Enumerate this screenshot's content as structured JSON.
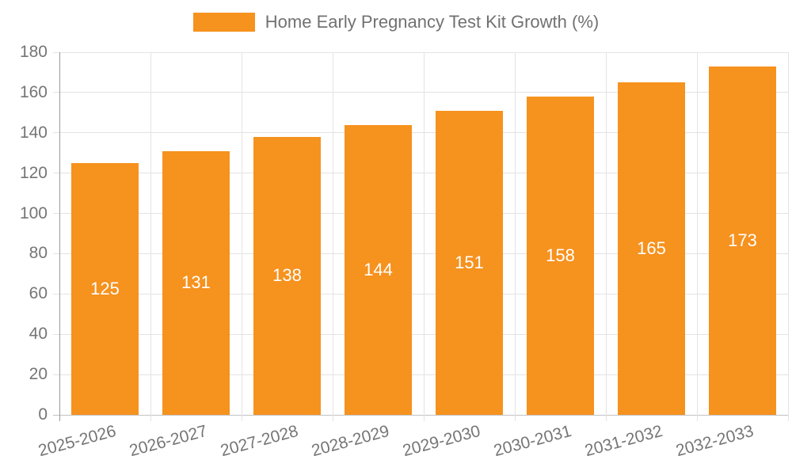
{
  "legend": {
    "label": "Home Early Pregnancy Test Kit Growth (%)",
    "swatch_color": "#F6921E"
  },
  "chart_data": {
    "type": "bar",
    "title": "",
    "xlabel": "",
    "ylabel": "",
    "categories": [
      "2025-2026",
      "2026-2027",
      "2027-2028",
      "2028-2029",
      "2029-2030",
      "2030-2031",
      "2031-2032",
      "2032-2033"
    ],
    "values": [
      125,
      131,
      138,
      144,
      151,
      158,
      165,
      173
    ],
    "series_name": "Home Early Pregnancy Test Kit Growth (%)",
    "ylim": [
      0,
      180
    ],
    "ytick_step": 20,
    "grid": true,
    "legend_position": "top-center",
    "bar_color": "#F6921E",
    "bar_label_color": "#FFFFFF",
    "axis_text_color": "#757575",
    "gridline_color": "#E3E3E3",
    "y_axis_line_color": "#9A9A9A",
    "x_axis_line_color": "#C2C2C2"
  }
}
